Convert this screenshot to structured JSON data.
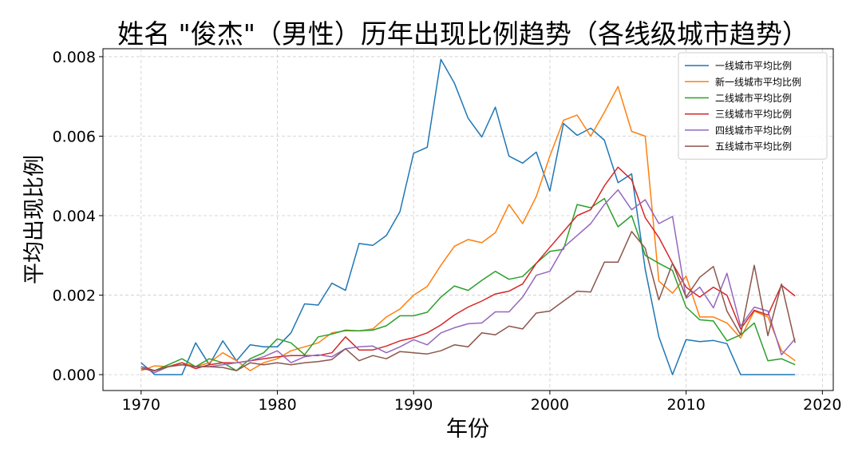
{
  "chart_data": {
    "type": "line",
    "title": "姓名 \"俊杰\"（男性）历年出现比例趋势（各线级城市趋势）",
    "xlabel": "年份",
    "ylabel": "平均出现比例",
    "xlim": [
      1967.2,
      2020.8
    ],
    "ylim": [
      -0.0004,
      0.0082
    ],
    "xticks": [
      1970,
      1980,
      1990,
      2000,
      2010,
      2020
    ],
    "xtick_labels": [
      "1970",
      "1980",
      "1990",
      "2000",
      "2010",
      "2020"
    ],
    "yticks": [
      0.0,
      0.002,
      0.004,
      0.006,
      0.008
    ],
    "ytick_labels": [
      "0.000",
      "0.002",
      "0.004",
      "0.006",
      "0.008"
    ],
    "grid": true,
    "legend_position": "top-right",
    "x": [
      1970,
      1971,
      1972,
      1973,
      1974,
      1975,
      1976,
      1977,
      1978,
      1979,
      1980,
      1981,
      1982,
      1983,
      1984,
      1985,
      1986,
      1987,
      1988,
      1989,
      1990,
      1991,
      1992,
      1993,
      1994,
      1995,
      1996,
      1997,
      1998,
      1999,
      2000,
      2001,
      2002,
      2003,
      2004,
      2005,
      2006,
      2007,
      2008,
      2009,
      2010,
      2011,
      2012,
      2013,
      2014,
      2015,
      2016,
      2017,
      2018
    ],
    "series": [
      {
        "name": "一线城市平均比例",
        "color": "#1f77b4",
        "values": [
          0.0003,
          0.0,
          0.0,
          0.0,
          0.0008,
          0.00025,
          0.00085,
          0.00035,
          0.00075,
          0.0007,
          0.0007,
          0.00105,
          0.00178,
          0.00175,
          0.0023,
          0.00212,
          0.0033,
          0.00325,
          0.0035,
          0.0041,
          0.00557,
          0.00572,
          0.00793,
          0.00733,
          0.00645,
          0.00598,
          0.00673,
          0.0055,
          0.00532,
          0.0056,
          0.00462,
          0.00632,
          0.00602,
          0.0062,
          0.0059,
          0.00483,
          0.00505,
          0.00265,
          0.00095,
          0.0,
          0.00088,
          0.00083,
          0.00086,
          0.00078,
          0.0,
          0.0,
          0.0,
          0.0,
          0.0
        ]
      },
      {
        "name": "新一线城市平均比例",
        "color": "#ff7f0e",
        "values": [
          0.0001,
          0.00022,
          0.0002,
          0.0003,
          0.0002,
          0.0003,
          0.00055,
          0.00035,
          0.0001,
          0.0003,
          0.0004,
          0.0006,
          0.0007,
          0.0008,
          0.00105,
          0.0011,
          0.0011,
          0.00115,
          0.00145,
          0.00165,
          0.002,
          0.00222,
          0.00275,
          0.00323,
          0.0034,
          0.00332,
          0.00357,
          0.00428,
          0.0038,
          0.00448,
          0.0055,
          0.0064,
          0.00653,
          0.006,
          0.0066,
          0.00725,
          0.00612,
          0.006,
          0.00235,
          0.00205,
          0.00248,
          0.00145,
          0.00145,
          0.0013,
          0.00092,
          0.0016,
          0.00145,
          0.0006,
          0.00035
        ]
      },
      {
        "name": "二线城市平均比例",
        "color": "#2ca02c",
        "values": [
          0.0002,
          0.0001,
          0.00025,
          0.0004,
          0.0002,
          0.0004,
          0.0003,
          0.0001,
          0.0004,
          0.00055,
          0.0009,
          0.0008,
          0.0005,
          0.00095,
          0.00102,
          0.00112,
          0.0011,
          0.00112,
          0.00123,
          0.00148,
          0.00148,
          0.00157,
          0.00195,
          0.00223,
          0.00212,
          0.00237,
          0.0026,
          0.0024,
          0.00247,
          0.0028,
          0.0031,
          0.00315,
          0.00428,
          0.0042,
          0.00443,
          0.00372,
          0.004,
          0.003,
          0.0028,
          0.00262,
          0.0017,
          0.00138,
          0.00135,
          0.00085,
          0.001,
          0.0013,
          0.00035,
          0.0004,
          0.00025
        ]
      },
      {
        "name": "三线城市平均比例",
        "color": "#d62728",
        "values": [
          0.0002,
          0.0001,
          0.0002,
          0.0003,
          0.00015,
          0.00025,
          0.0003,
          0.0003,
          0.00035,
          0.0004,
          0.00045,
          0.00048,
          0.00048,
          0.00048,
          0.00055,
          0.00095,
          0.00062,
          0.00062,
          0.00072,
          0.00085,
          0.00093,
          0.00105,
          0.00125,
          0.0015,
          0.0017,
          0.00185,
          0.00203,
          0.0021,
          0.00228,
          0.0028,
          0.0032,
          0.0036,
          0.004,
          0.00415,
          0.00475,
          0.00522,
          0.0049,
          0.00395,
          0.00345,
          0.0028,
          0.0022,
          0.00195,
          0.0022,
          0.002,
          0.00115,
          0.00162,
          0.0015,
          0.00225,
          0.00198
        ]
      },
      {
        "name": "四线城市平均比例",
        "color": "#9467bd",
        "values": [
          0.0002,
          5e-05,
          0.0002,
          0.00025,
          0.0002,
          0.0002,
          0.00025,
          0.0003,
          0.00035,
          0.00045,
          0.0006,
          0.0003,
          0.00045,
          0.0005,
          0.00045,
          0.00065,
          0.0007,
          0.00072,
          0.00055,
          0.0007,
          0.00088,
          0.00075,
          0.00105,
          0.00118,
          0.00128,
          0.0013,
          0.00158,
          0.00158,
          0.00195,
          0.0025,
          0.0026,
          0.0032,
          0.0035,
          0.0038,
          0.00428,
          0.00465,
          0.00415,
          0.0044,
          0.0038,
          0.00398,
          0.00192,
          0.0022,
          0.00168,
          0.00255,
          0.00122,
          0.0017,
          0.0016,
          0.0005,
          0.0009
        ]
      },
      {
        "name": "五线城市平均比例",
        "color": "#8c564b",
        "values": [
          0.00015,
          0.0001,
          0.0002,
          0.00025,
          0.0002,
          0.0002,
          0.00018,
          0.0001,
          0.0003,
          0.00025,
          0.0003,
          0.00025,
          0.0003,
          0.00033,
          0.00038,
          0.00065,
          0.00035,
          0.00048,
          0.0004,
          0.00058,
          0.00055,
          0.00052,
          0.0006,
          0.00075,
          0.0007,
          0.00105,
          0.001,
          0.00122,
          0.00115,
          0.00155,
          0.0016,
          0.00185,
          0.0021,
          0.00208,
          0.00283,
          0.00283,
          0.0036,
          0.00318,
          0.00188,
          0.0028,
          0.00195,
          0.00245,
          0.00272,
          0.0016,
          0.001,
          0.00275,
          0.00098,
          0.00228,
          0.0008
        ]
      }
    ]
  }
}
